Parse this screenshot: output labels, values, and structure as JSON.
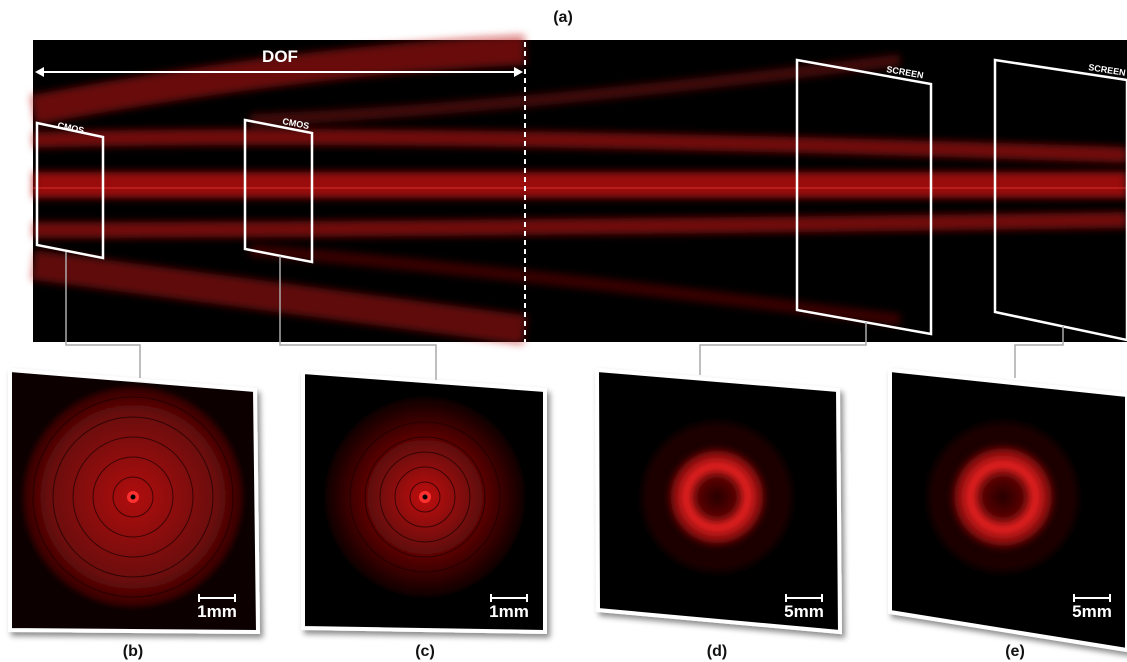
{
  "top": {
    "label": "(a)",
    "dof_label": "DOF",
    "planes": [
      {
        "label": "CMOS"
      },
      {
        "label": "CMOS"
      },
      {
        "label": "SCREEN"
      },
      {
        "label": "SCREEN"
      }
    ]
  },
  "panels": [
    {
      "label": "(b)",
      "scale": "1mm"
    },
    {
      "label": "(c)",
      "scale": "1mm"
    },
    {
      "label": "(d)",
      "scale": "5mm"
    },
    {
      "label": "(e)",
      "scale": "5mm"
    }
  ]
}
